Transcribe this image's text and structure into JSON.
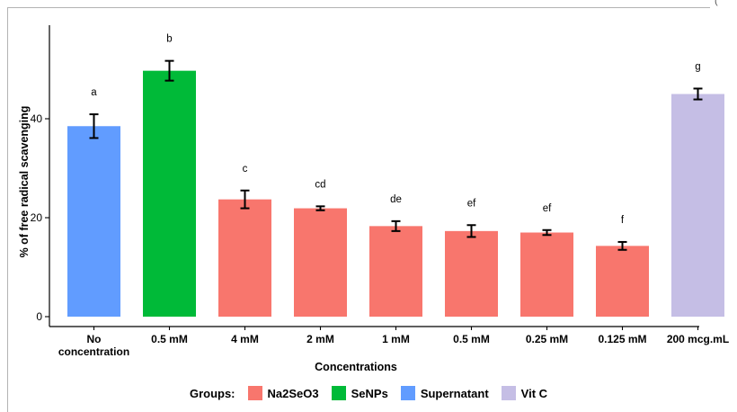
{
  "chart_data": {
    "type": "bar",
    "xlabel": "Concentrations",
    "ylabel": "% of free radical scavenging",
    "ylim": [
      0,
      55
    ],
    "yticks": [
      0,
      20,
      40
    ],
    "grid": false,
    "legend_placement": "bottom",
    "legend_title": "Groups:",
    "corner_mark": "(",
    "groups": [
      {
        "name": "Na2SeO3",
        "color": "#F8766D"
      },
      {
        "name": "SeNPs",
        "color": "#00BA38"
      },
      {
        "name": "Supernatant",
        "color": "#619CFF"
      },
      {
        "name": "Vit C",
        "color": "#C5BEE5"
      }
    ],
    "bars": [
      {
        "label": "No concentration",
        "label_lines": [
          "No",
          "concentration"
        ],
        "value": 38.5,
        "err": 2.4,
        "group": "Supernatant",
        "letter": "a"
      },
      {
        "label": "0.5 mM",
        "label_lines": [
          "0.5 mM"
        ],
        "value": 49.7,
        "err": 2.0,
        "group": "SeNPs",
        "letter": "b"
      },
      {
        "label": "4 mM",
        "label_lines": [
          "4 mM"
        ],
        "value": 23.7,
        "err": 1.8,
        "group": "Na2SeO3",
        "letter": "c"
      },
      {
        "label": "2 mM",
        "label_lines": [
          "2 mM"
        ],
        "value": 21.9,
        "err": 0.4,
        "group": "Na2SeO3",
        "letter": "cd"
      },
      {
        "label": "1 mM",
        "label_lines": [
          "1 mM"
        ],
        "value": 18.3,
        "err": 1.0,
        "group": "Na2SeO3",
        "letter": "de"
      },
      {
        "label": "0.5 mM",
        "label_lines": [
          "0.5 mM"
        ],
        "value": 17.3,
        "err": 1.2,
        "group": "Na2SeO3",
        "letter": "ef"
      },
      {
        "label": "0.25 mM",
        "label_lines": [
          "0.25 mM"
        ],
        "value": 17.0,
        "err": 0.5,
        "group": "Na2SeO3",
        "letter": "ef"
      },
      {
        "label": "0.125 mM",
        "label_lines": [
          "0.125 mM"
        ],
        "value": 14.3,
        "err": 0.8,
        "group": "Na2SeO3",
        "letter": "f"
      },
      {
        "label": "200 mcg.mL",
        "label_lines": [
          "200 mcg.mL"
        ],
        "value": 45.0,
        "err": 1.1,
        "group": "Vit C",
        "letter": "g"
      }
    ]
  }
}
